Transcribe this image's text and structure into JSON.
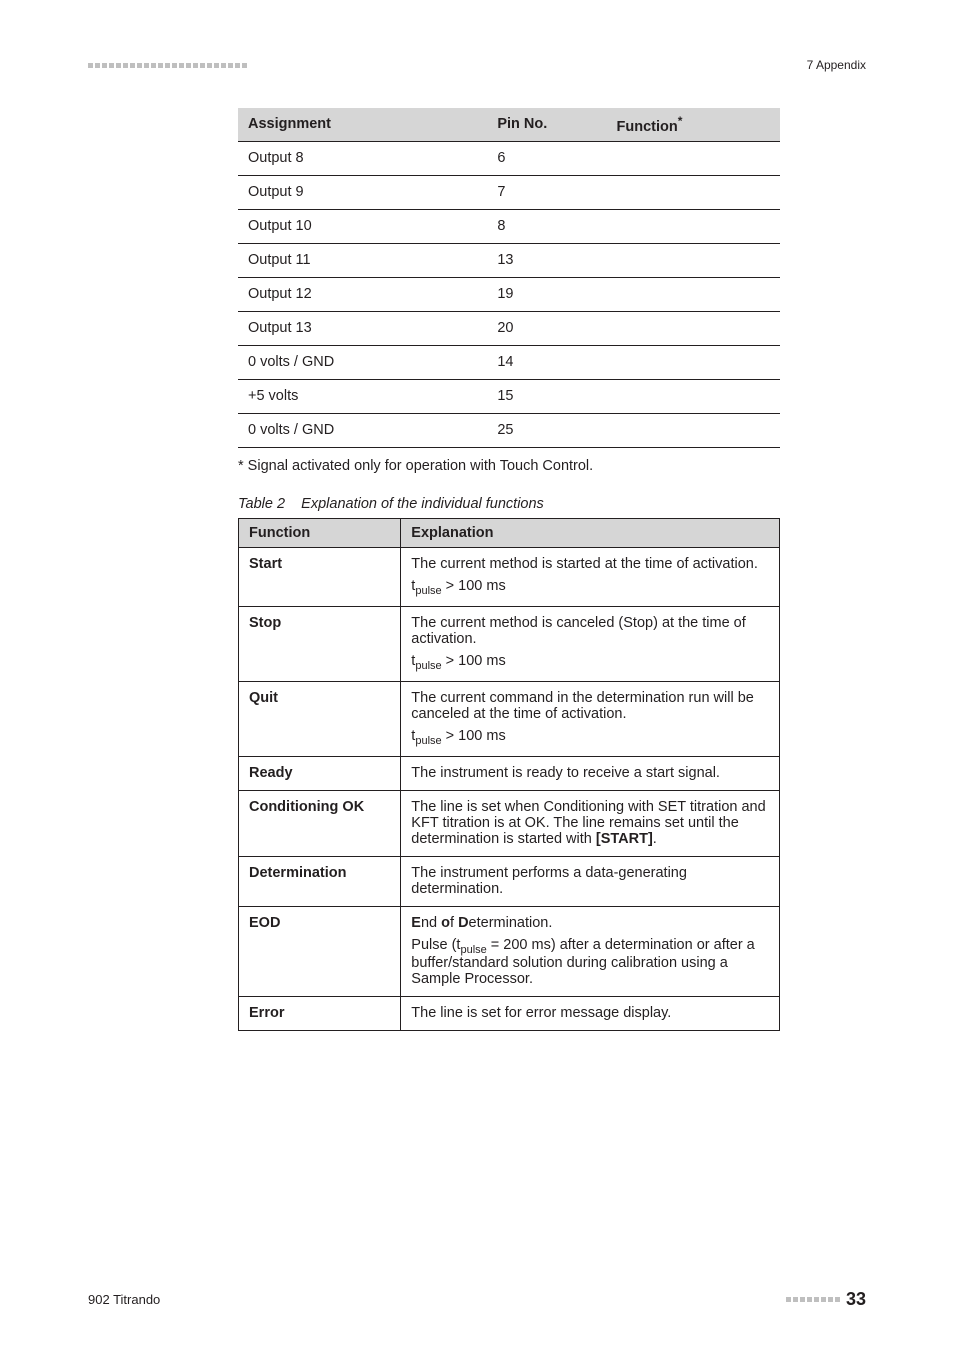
{
  "header": {
    "section": "7 Appendix"
  },
  "table1": {
    "headers": [
      "Assignment",
      "Pin No.",
      "Function*"
    ],
    "rows": [
      [
        "Output 8",
        "6",
        ""
      ],
      [
        "Output 9",
        "7",
        ""
      ],
      [
        "Output 10",
        "8",
        ""
      ],
      [
        "Output 11",
        "13",
        ""
      ],
      [
        "Output 12",
        "19",
        ""
      ],
      [
        "Output 13",
        "20",
        ""
      ],
      [
        "0 volts / GND",
        "14",
        ""
      ],
      [
        "+5 volts",
        "15",
        ""
      ],
      [
        "0 volts / GND",
        "25",
        ""
      ]
    ]
  },
  "note": "* Signal activated only for operation with Touch Control.",
  "caption_prefix": "Table 2",
  "caption_text": "Explanation of the individual functions",
  "table2": {
    "headers": [
      "Function",
      "Explanation"
    ],
    "rows": [
      {
        "fn": "Start",
        "exp": [
          "The current method is started at the time of activation.",
          "t<sub>pulse</sub> > 100 ms"
        ]
      },
      {
        "fn": "Stop",
        "exp": [
          "The current method is canceled (Stop) at the time of activation.",
          "t<sub>pulse</sub> > 100 ms"
        ]
      },
      {
        "fn": "Quit",
        "exp": [
          "The current command in the determination run will be canceled at the time of activation.",
          "t<sub>pulse</sub> > 100 ms"
        ]
      },
      {
        "fn": "Ready",
        "exp": [
          "The instrument is ready to receive a start signal."
        ]
      },
      {
        "fn": "Conditioning OK",
        "exp": [
          "The line is set when Conditioning with SET titration and KFT titration is at OK. The line remains set until the determination is started with <b>[START]</b>."
        ]
      },
      {
        "fn": "Determination",
        "exp": [
          "The instrument performs a data-generating determination."
        ]
      },
      {
        "fn": "EOD",
        "exp": [
          "<b>E</b>nd <b>o</b>f <b>D</b>etermination.",
          "Pulse (t<sub>pulse</sub> = 200 ms) after a determination or after a buffer/standard solution during calibration using a Sample Processor."
        ]
      },
      {
        "fn": "Error",
        "exp": [
          "The line is set for error message display."
        ]
      }
    ]
  },
  "footer": {
    "left": "902 Titrando",
    "page": "33"
  },
  "colors": {
    "header_bg": "#d6d6d6",
    "border": "#231f20",
    "dash": "#bfbfbf"
  }
}
